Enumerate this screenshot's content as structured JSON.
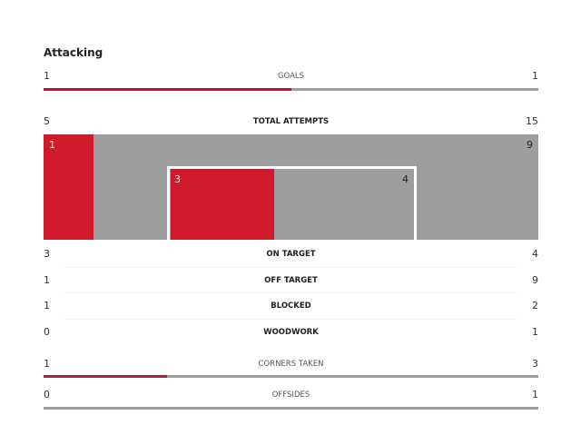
{
  "section_title": "Attacking",
  "colors": {
    "home": "#cf1b2b",
    "away": "#9e9e9e"
  },
  "goals": {
    "label": "GOALS",
    "home": "1",
    "away": "1",
    "home_share": 0.5
  },
  "total_attempts": {
    "label": "TOTAL ATTEMPTS",
    "home": "5",
    "away": "15",
    "home_off_target": "1",
    "away_off_target": "9",
    "home_on_target": "3",
    "away_on_target": "4"
  },
  "rows": [
    {
      "label": "ON TARGET",
      "home": "3",
      "away": "4"
    },
    {
      "label": "OFF TARGET",
      "home": "1",
      "away": "9"
    },
    {
      "label": "BLOCKED",
      "home": "1",
      "away": "2"
    },
    {
      "label": "WOODWORK",
      "home": "0",
      "away": "1"
    }
  ],
  "corners": {
    "label": "CORNERS TAKEN",
    "home": "1",
    "away": "3",
    "home_share": 0.25
  },
  "offsides": {
    "label": "OFFSIDES",
    "home": "0",
    "away": "1",
    "home_share": 0
  }
}
